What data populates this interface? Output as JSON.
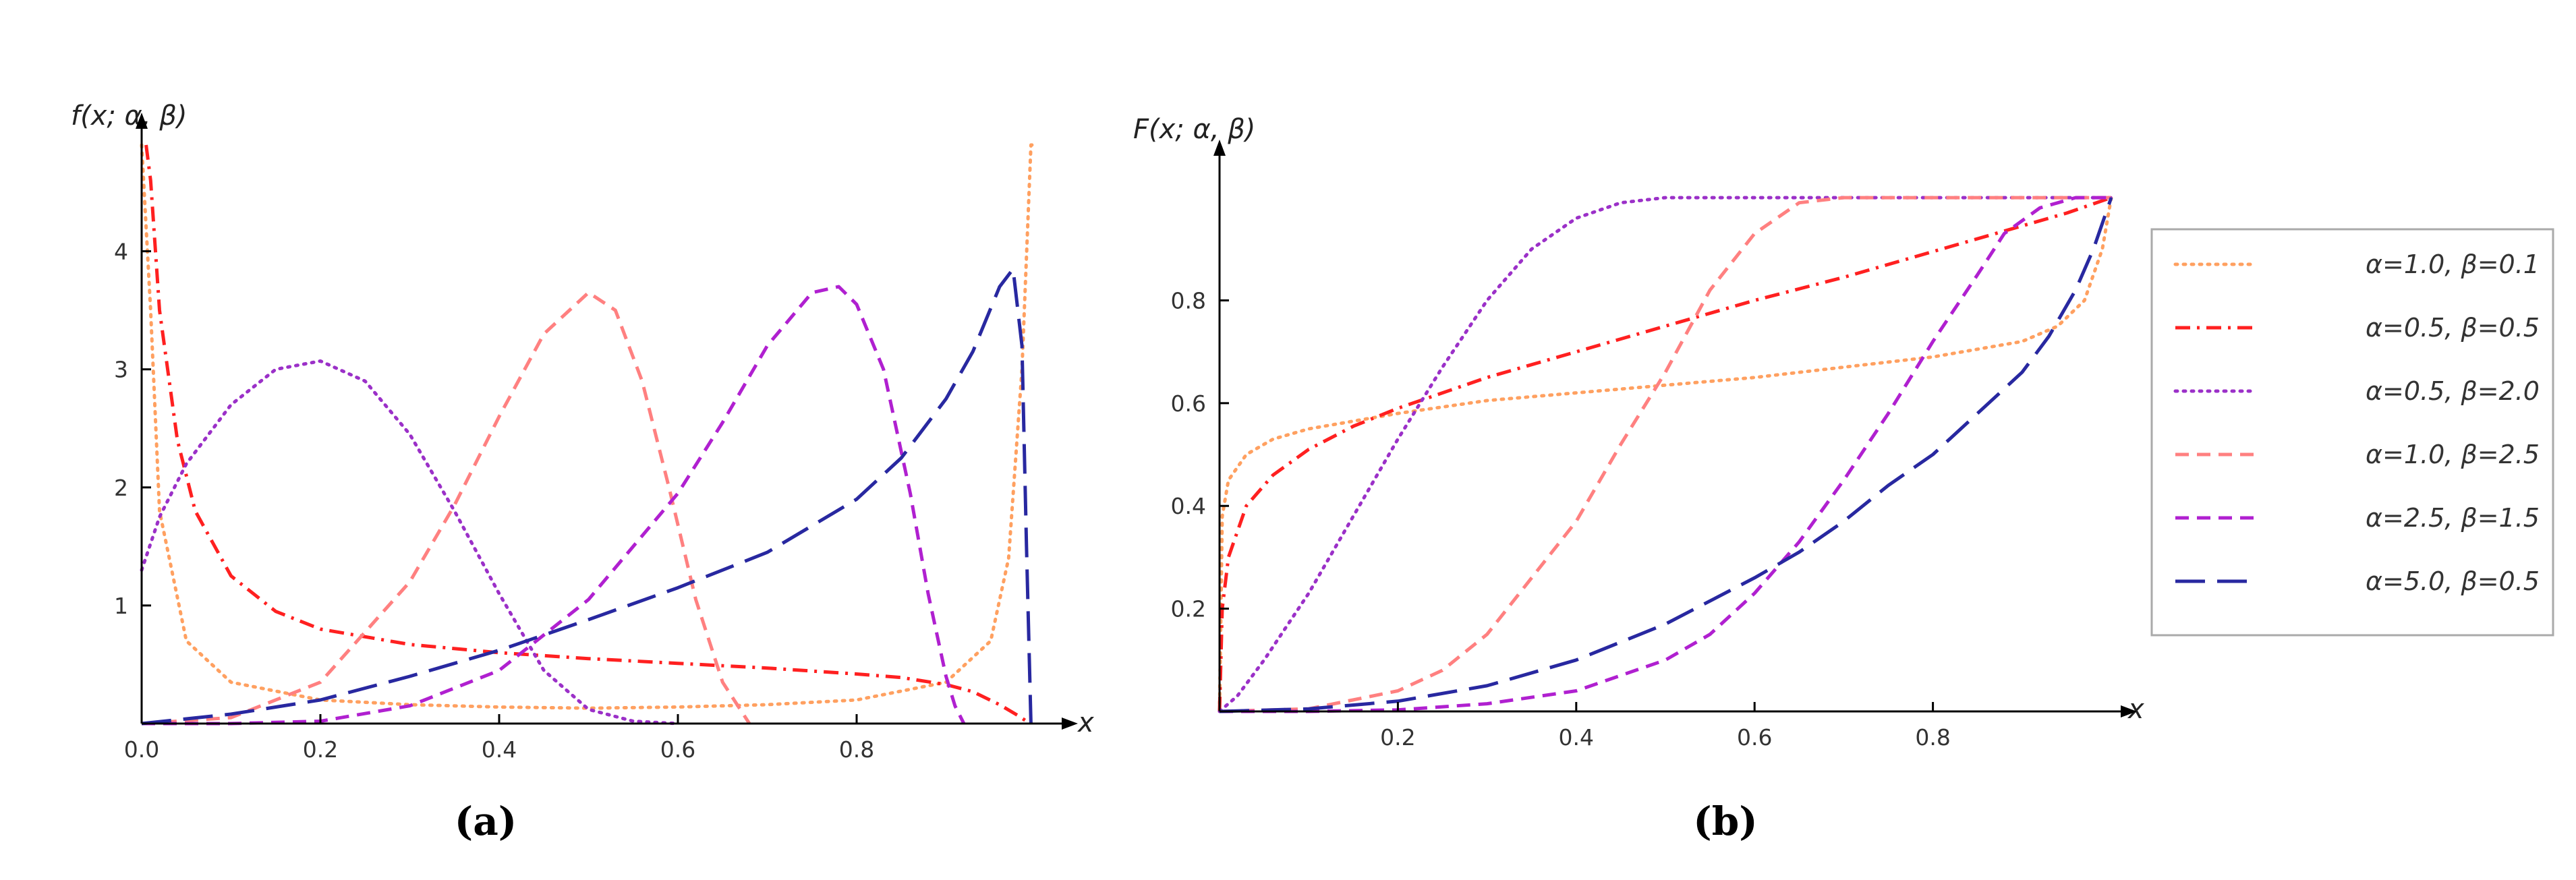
{
  "figure": {
    "captions": [
      "(a)",
      "(b)"
    ]
  },
  "legend": {
    "entries": [
      "α=1.0, β=0.1",
      "α=0.5, β=0.5",
      "α=0.5, β=2.0",
      "α=1.0, β=2.5",
      "α=2.5, β=1.5",
      "α=5.0, β=0.5"
    ]
  },
  "chart_data": [
    {
      "type": "line",
      "panel": "(a)",
      "title": "",
      "ylabel": "f(x; α, β)",
      "xlabel": "x",
      "xlim": [
        0,
        1
      ],
      "ylim": [
        0,
        4.9
      ],
      "xticks": [
        0.0,
        0.2,
        0.4,
        0.6,
        0.8
      ],
      "xtick_labels": [
        "0.0",
        "0.2",
        "0.4",
        "0.6",
        "0.8"
      ],
      "yticks": [
        1,
        2,
        3,
        4
      ],
      "ytick_labels": [
        "1",
        "2",
        "3",
        "4"
      ],
      "series": [
        {
          "name": "α=1.0, β=0.1",
          "color": "#FFA060",
          "dash": "dotted",
          "x": [
            0.0,
            0.01,
            0.02,
            0.05,
            0.1,
            0.2,
            0.3,
            0.4,
            0.5,
            0.6,
            0.7,
            0.8,
            0.9,
            0.95,
            0.97,
            0.985,
            0.995,
            1.0
          ],
          "y": [
            4.9,
            3.5,
            1.8,
            0.7,
            0.35,
            0.2,
            0.16,
            0.14,
            0.13,
            0.14,
            0.16,
            0.2,
            0.35,
            0.7,
            1.4,
            3.0,
            4.9,
            4.9
          ]
        },
        {
          "name": "α=0.5, β=0.5",
          "color": "#FF2020",
          "dash": "dashdot",
          "x": [
            0.005,
            0.01,
            0.02,
            0.04,
            0.06,
            0.1,
            0.15,
            0.2,
            0.3,
            0.4,
            0.5,
            0.6,
            0.7,
            0.8,
            0.85,
            0.9,
            0.93,
            0.96,
            0.98,
            0.99
          ],
          "y": [
            4.9,
            4.6,
            3.5,
            2.4,
            1.8,
            1.25,
            0.95,
            0.8,
            0.67,
            0.6,
            0.55,
            0.51,
            0.47,
            0.42,
            0.39,
            0.33,
            0.27,
            0.16,
            0.07,
            0.02
          ]
        },
        {
          "name": "α=0.5, β=2.0",
          "color": "#9B30C8",
          "dash": "dotted",
          "x": [
            0.0,
            0.02,
            0.05,
            0.1,
            0.15,
            0.2,
            0.25,
            0.3,
            0.35,
            0.4,
            0.45,
            0.5,
            0.55,
            0.6
          ],
          "y": [
            1.3,
            1.75,
            2.2,
            2.7,
            3.0,
            3.07,
            2.9,
            2.45,
            1.8,
            1.1,
            0.45,
            0.12,
            0.02,
            0.0
          ]
        },
        {
          "name": "α=1.0, β=2.5",
          "color": "#FF8080",
          "dash": "dashed",
          "x": [
            0.0,
            0.1,
            0.2,
            0.3,
            0.35,
            0.4,
            0.45,
            0.5,
            0.53,
            0.56,
            0.59,
            0.62,
            0.65,
            0.68
          ],
          "y": [
            0.0,
            0.05,
            0.35,
            1.2,
            1.85,
            2.6,
            3.3,
            3.65,
            3.5,
            2.9,
            2.0,
            1.05,
            0.35,
            0.0
          ]
        },
        {
          "name": "α=2.5, β=1.5",
          "color": "#B020D0",
          "dash": "dashed",
          "x": [
            0.0,
            0.1,
            0.2,
            0.3,
            0.4,
            0.5,
            0.6,
            0.65,
            0.7,
            0.75,
            0.78,
            0.8,
            0.83,
            0.86,
            0.88,
            0.9,
            0.91,
            0.92
          ],
          "y": [
            0.0,
            0.0,
            0.02,
            0.15,
            0.45,
            1.05,
            1.95,
            2.55,
            3.2,
            3.65,
            3.7,
            3.55,
            3.0,
            1.95,
            1.1,
            0.4,
            0.15,
            0.0
          ]
        },
        {
          "name": "α=5.0, β=0.5",
          "color": "#2828A0",
          "dash": "longdash",
          "x": [
            0.0,
            0.1,
            0.2,
            0.3,
            0.4,
            0.5,
            0.6,
            0.7,
            0.8,
            0.85,
            0.9,
            0.93,
            0.96,
            0.975,
            0.985,
            0.99,
            0.995
          ],
          "y": [
            0.0,
            0.08,
            0.2,
            0.4,
            0.62,
            0.88,
            1.15,
            1.45,
            1.9,
            2.25,
            2.75,
            3.15,
            3.7,
            3.85,
            3.2,
            1.5,
            0.0
          ]
        }
      ]
    },
    {
      "type": "line",
      "panel": "(b)",
      "title": "",
      "ylabel": "F(x; α, β)",
      "xlabel": "x",
      "xlim": [
        0,
        1
      ],
      "ylim": [
        0,
        1.05
      ],
      "xticks": [
        0.2,
        0.4,
        0.6,
        0.8
      ],
      "xtick_labels": [
        "0.2",
        "0.4",
        "0.6",
        "0.8"
      ],
      "yticks": [
        0.2,
        0.4,
        0.6,
        0.8
      ],
      "ytick_labels": [
        "0.2",
        "0.4",
        "0.6",
        "0.8"
      ],
      "series": [
        {
          "name": "α=1.0, β=0.1",
          "color": "#FFA060",
          "dash": "dotted",
          "x": [
            0.0,
            0.003,
            0.01,
            0.03,
            0.06,
            0.1,
            0.2,
            0.3,
            0.4,
            0.5,
            0.6,
            0.7,
            0.8,
            0.9,
            0.94,
            0.97,
            0.99,
            1.0
          ],
          "y": [
            0.0,
            0.38,
            0.45,
            0.5,
            0.53,
            0.55,
            0.58,
            0.605,
            0.62,
            0.635,
            0.65,
            0.67,
            0.69,
            0.72,
            0.75,
            0.8,
            0.9,
            1.0
          ]
        },
        {
          "name": "α=0.5, β=0.5",
          "color": "#FF2020",
          "dash": "dashdot",
          "x": [
            0.0,
            0.003,
            0.01,
            0.03,
            0.06,
            0.1,
            0.15,
            0.2,
            0.3,
            0.4,
            0.5,
            0.6,
            0.7,
            0.8,
            0.9,
            0.95,
            1.0
          ],
          "y": [
            0.0,
            0.2,
            0.3,
            0.4,
            0.46,
            0.51,
            0.555,
            0.59,
            0.65,
            0.7,
            0.75,
            0.8,
            0.845,
            0.895,
            0.945,
            0.97,
            1.0
          ]
        },
        {
          "name": "α=0.5, β=2.0",
          "color": "#9B30C8",
          "dash": "dotted",
          "x": [
            0.0,
            0.02,
            0.05,
            0.1,
            0.15,
            0.2,
            0.25,
            0.3,
            0.35,
            0.4,
            0.45,
            0.5,
            0.55,
            0.6,
            0.7,
            0.8,
            0.9,
            1.0
          ],
          "y": [
            0.0,
            0.03,
            0.1,
            0.23,
            0.38,
            0.53,
            0.67,
            0.8,
            0.9,
            0.96,
            0.99,
            1.0,
            1.0,
            1.0,
            1.0,
            1.0,
            1.0,
            1.0
          ]
        },
        {
          "name": "α=1.0, β=2.5",
          "color": "#FF8080",
          "dash": "dashed",
          "x": [
            0.0,
            0.1,
            0.2,
            0.25,
            0.3,
            0.35,
            0.4,
            0.45,
            0.5,
            0.55,
            0.6,
            0.65,
            0.7,
            0.8,
            0.9,
            1.0
          ],
          "y": [
            0.0,
            0.005,
            0.04,
            0.08,
            0.15,
            0.26,
            0.37,
            0.52,
            0.66,
            0.82,
            0.93,
            0.99,
            1.0,
            1.0,
            1.0,
            1.0
          ]
        },
        {
          "name": "α=2.5, β=1.5",
          "color": "#B020D0",
          "dash": "dashed",
          "x": [
            0.0,
            0.1,
            0.2,
            0.3,
            0.4,
            0.5,
            0.55,
            0.6,
            0.65,
            0.7,
            0.75,
            0.8,
            0.85,
            0.88,
            0.92,
            0.96,
            1.0
          ],
          "y": [
            0.0,
            0.0,
            0.003,
            0.015,
            0.04,
            0.1,
            0.15,
            0.23,
            0.33,
            0.45,
            0.58,
            0.72,
            0.85,
            0.93,
            0.98,
            1.0,
            1.0
          ]
        },
        {
          "name": "α=5.0, β=0.5",
          "color": "#2828A0",
          "dash": "longdash",
          "x": [
            0.0,
            0.1,
            0.2,
            0.3,
            0.4,
            0.5,
            0.6,
            0.65,
            0.7,
            0.75,
            0.8,
            0.85,
            0.9,
            0.93,
            0.96,
            0.98,
            1.0
          ],
          "y": [
            0.0,
            0.005,
            0.02,
            0.05,
            0.1,
            0.17,
            0.26,
            0.31,
            0.37,
            0.44,
            0.5,
            0.58,
            0.66,
            0.73,
            0.82,
            0.9,
            1.0
          ]
        }
      ]
    }
  ]
}
